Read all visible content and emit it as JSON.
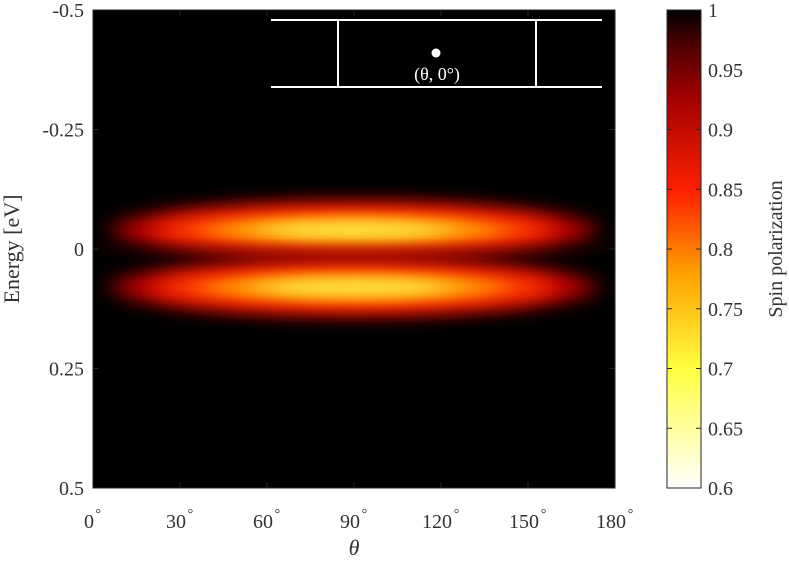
{
  "chart_data": {
    "type": "heatmap",
    "title": "",
    "xlabel": "θ",
    "ylabel": "Energy [eV]",
    "xlim": [
      0,
      180
    ],
    "ylim": [
      -0.5,
      0.5
    ],
    "y_direction": "reversed",
    "x_ticks": [
      0,
      30,
      60,
      90,
      120,
      150,
      180
    ],
    "x_tick_labels": [
      "0",
      "30",
      "60",
      "90",
      "120",
      "150",
      "180"
    ],
    "x_tick_suffix": "°",
    "y_ticks": [
      -0.5,
      -0.25,
      0,
      0.25,
      0.5
    ],
    "y_tick_labels": [
      "-0.5",
      "-0.25",
      "0",
      "0.25",
      "0.5"
    ],
    "colorbar": {
      "label": "Spin polarization",
      "range": [
        0.6,
        1
      ],
      "ticks": [
        0.6,
        0.65,
        0.7,
        0.75,
        0.8,
        0.85,
        0.9,
        0.95,
        1
      ],
      "tick_labels": [
        "0.6",
        "0.65",
        "0.7",
        "0.75",
        "0.8",
        "0.85",
        "0.9",
        "0.95",
        "1"
      ],
      "colormap": "hot (reversed): 0.6 white → yellow → red → 1 black"
    },
    "field": {
      "description": "Spin polarization ≈ 1 everywhere except two horizontal lobes centered near θ = 90° at E ≈ -0.04 eV and E ≈ 0.08 eV, separated by a darker band at E = 0.",
      "lobes": [
        {
          "center_theta": 90,
          "center_energy": -0.04,
          "min_value": 0.67
        },
        {
          "center_theta": 90,
          "center_energy": 0.08,
          "min_value": 0.67
        }
      ],
      "theta_extent": [
        5,
        175
      ],
      "dark_band_energy": 0
    },
    "grid": false,
    "legend": "none",
    "inset": {
      "label": "(θ, 0°)",
      "description": "white schematic: two horizontal lines, two vertical lines, dot above label"
    }
  }
}
